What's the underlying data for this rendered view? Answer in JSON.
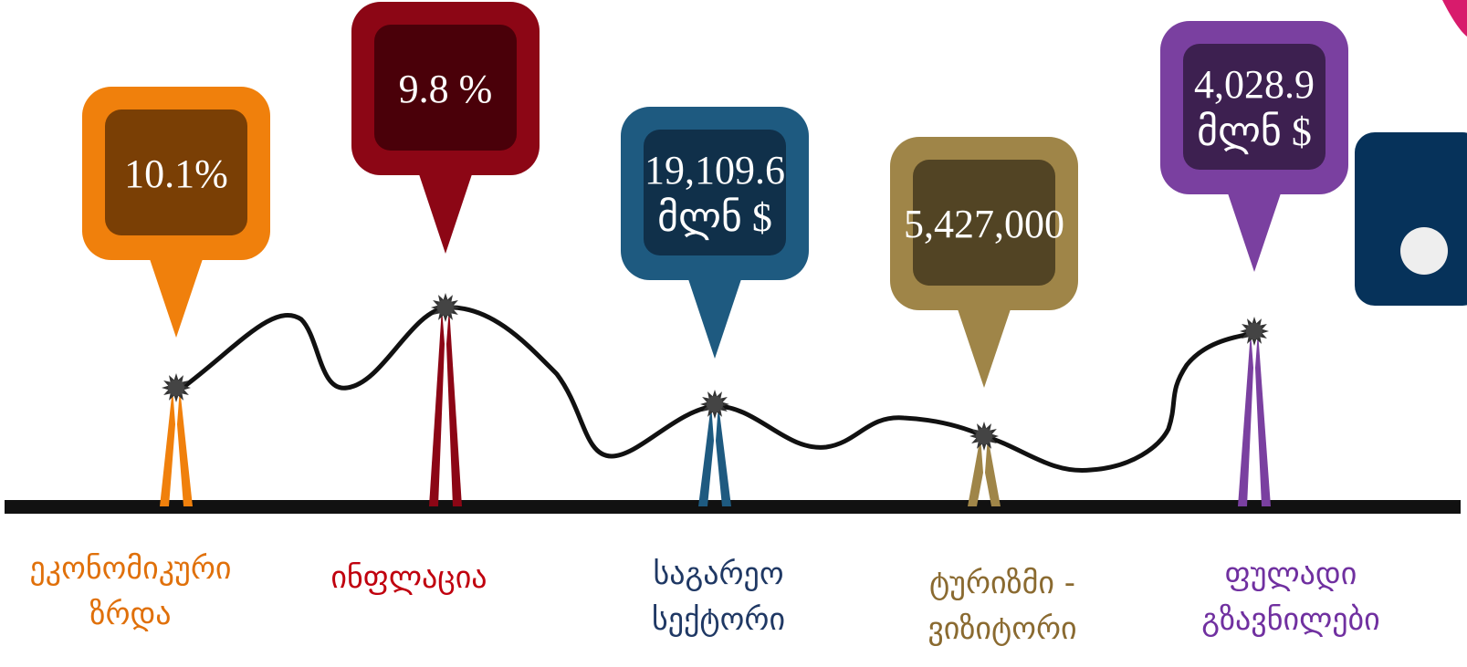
{
  "items": [
    {
      "value_lines": [
        "10.1%"
      ],
      "label_lines": [
        "ეკონომიკური",
        "ზრდა"
      ]
    },
    {
      "value_lines": [
        "9.8 %"
      ],
      "label_lines": [
        "ინფლაცია"
      ]
    },
    {
      "value_lines": [
        "19,109.6",
        "მლნ $"
      ],
      "label_lines": [
        "საგარეო",
        "სექტორი"
      ]
    },
    {
      "value_lines": [
        "5,427,000"
      ],
      "label_lines": [
        "ტურიზმი -",
        "ვიზიტორი"
      ]
    },
    {
      "value_lines": [
        "4,028.9",
        "მლნ $"
      ],
      "label_lines": [
        "ფულადი",
        "გზავნილები"
      ]
    }
  ]
}
